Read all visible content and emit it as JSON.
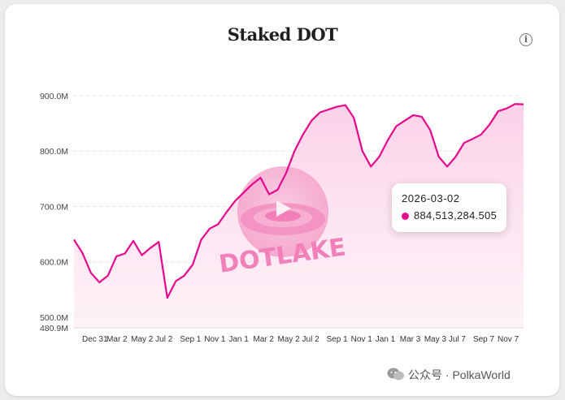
{
  "title": "Staked DOT",
  "info_icon": "info-circle-icon",
  "chart_data": {
    "type": "area",
    "title": "Staked DOT",
    "color": "#e5098d",
    "fill_color": "#fde3f0",
    "y_ticks": [
      "900.0M",
      "800.0M",
      "700.0M",
      "600.0M",
      "500.0M",
      "480.9M"
    ],
    "y_tick_values": [
      900,
      800,
      700,
      600,
      500,
      480.9
    ],
    "ylim": [
      480.9,
      900
    ],
    "y_unit": "M DOT",
    "x_ticks": [
      "Dec 31",
      "Mar 2",
      "May 2",
      "Jul 2",
      "Sep 1",
      "Nov 1",
      "Jan 1",
      "Mar 2",
      "May 2",
      "Jul 2",
      "Sep 1",
      "Nov 1",
      "Jan 1",
      "Mar 3",
      "May 3",
      "Jul 7",
      "Sep 7",
      "Nov 7"
    ],
    "grid": true,
    "series": [
      {
        "values": [
          640,
          616,
          580,
          563,
          575,
          610,
          615,
          638,
          612,
          625,
          636,
          535,
          565,
          575,
          595,
          640,
          660,
          668,
          690,
          710,
          725,
          740,
          752,
          722,
          730,
          760,
          800,
          830,
          855,
          870,
          875,
          880,
          883,
          860,
          800,
          772,
          790,
          820,
          845,
          855,
          865,
          862,
          838,
          790,
          772,
          790,
          815,
          822,
          830,
          848,
          872,
          877,
          885,
          884.51
        ]
      }
    ]
  },
  "tooltip": {
    "date": "2026-03-02",
    "value": "884,513,284.505"
  },
  "watermark": {
    "chart_logo": "DOTLAKE",
    "text": "公众号 · PolkaWorld",
    "icon": "wechat-icon"
  }
}
